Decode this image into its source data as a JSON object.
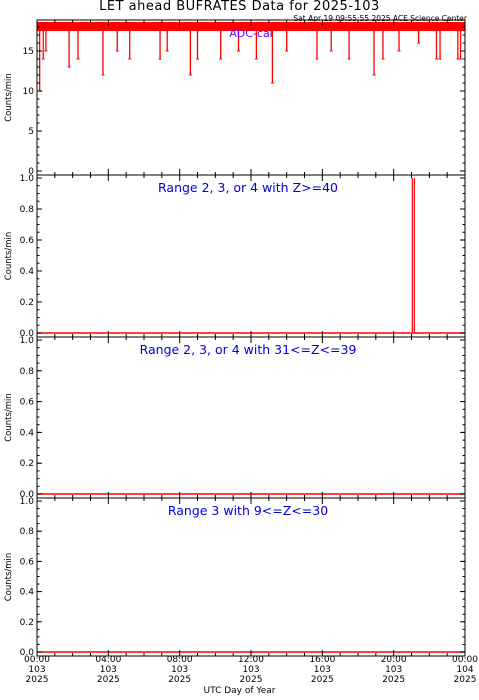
{
  "title": "LET ahead BUFRATES Data for 2025-103",
  "timestamp": "Sat Apr 19 09:55:55 2025 ACE Science Center",
  "xlabel": "UTC Day of Year",
  "colors": {
    "data": "#ff0000",
    "label": "#0000dd",
    "adc_label": "#6a00ff",
    "axes": "#000000"
  },
  "x_ticks": [
    {
      "time": "00:00",
      "doy": "103",
      "year": "2025"
    },
    {
      "time": "04:00",
      "doy": "103",
      "year": "2025"
    },
    {
      "time": "08:00",
      "doy": "103",
      "year": "2025"
    },
    {
      "time": "12:00",
      "doy": "103",
      "year": "2025"
    },
    {
      "time": "16:00",
      "doy": "103",
      "year": "2025"
    },
    {
      "time": "20:00",
      "doy": "103",
      "year": "2025"
    },
    {
      "time": "00:00",
      "doy": "104",
      "year": "2025"
    }
  ],
  "chart_data": [
    {
      "type": "line",
      "label": "ADC-cal",
      "ylabel": "Counts/min",
      "ylim": [
        0,
        18.5
      ],
      "xlim_hours": [
        0,
        24
      ],
      "yticks": [
        "0",
        "5",
        "10",
        "15"
      ],
      "ytick_values": [
        0,
        5,
        10,
        15
      ],
      "baseline": 18,
      "dips": [
        {
          "x": 0.15,
          "y": 10
        },
        {
          "x": 0.35,
          "y": 14
        },
        {
          "x": 0.5,
          "y": 15
        },
        {
          "x": 1.8,
          "y": 13
        },
        {
          "x": 2.3,
          "y": 14
        },
        {
          "x": 3.7,
          "y": 12
        },
        {
          "x": 4.5,
          "y": 15
        },
        {
          "x": 5.2,
          "y": 14
        },
        {
          "x": 6.9,
          "y": 14
        },
        {
          "x": 7.3,
          "y": 15
        },
        {
          "x": 8.6,
          "y": 12
        },
        {
          "x": 9.0,
          "y": 14
        },
        {
          "x": 10.3,
          "y": 14
        },
        {
          "x": 11.3,
          "y": 15
        },
        {
          "x": 12.3,
          "y": 14
        },
        {
          "x": 13.2,
          "y": 11
        },
        {
          "x": 14.0,
          "y": 15
        },
        {
          "x": 15.7,
          "y": 14
        },
        {
          "x": 16.5,
          "y": 15
        },
        {
          "x": 17.5,
          "y": 14
        },
        {
          "x": 18.9,
          "y": 12
        },
        {
          "x": 19.4,
          "y": 14
        },
        {
          "x": 20.3,
          "y": 15
        },
        {
          "x": 21.4,
          "y": 16
        },
        {
          "x": 22.4,
          "y": 14
        },
        {
          "x": 22.6,
          "y": 14
        },
        {
          "x": 23.6,
          "y": 14
        },
        {
          "x": 23.75,
          "y": 14
        }
      ]
    },
    {
      "type": "line",
      "label": "Range 2, 3, or 4 with Z>=40",
      "ylabel": "Counts/min",
      "ylim": [
        0,
        1
      ],
      "xlim_hours": [
        0,
        24
      ],
      "yticks": [
        "0.0",
        "0.2",
        "0.4",
        "0.6",
        "0.8",
        "1.0"
      ],
      "ytick_values": [
        0,
        0.2,
        0.4,
        0.6,
        0.8,
        1.0
      ],
      "baseline": 0,
      "spikes": [
        {
          "x": 21.1,
          "y": 1.0
        }
      ]
    },
    {
      "type": "line",
      "label": "Range 2, 3, or 4 with 31<=Z<=39",
      "ylabel": "Counts/min",
      "ylim": [
        0,
        1
      ],
      "xlim_hours": [
        0,
        24
      ],
      "yticks": [
        "0.0",
        "0.2",
        "0.4",
        "0.6",
        "0.8",
        "1.0"
      ],
      "ytick_values": [
        0,
        0.2,
        0.4,
        0.6,
        0.8,
        1.0
      ],
      "baseline": 0,
      "spikes": []
    },
    {
      "type": "line",
      "label": "Range 3 with 9<=Z<=30",
      "ylabel": "Counts/min",
      "ylim": [
        0,
        1
      ],
      "xlim_hours": [
        0,
        24
      ],
      "yticks": [
        "0.0",
        "0.2",
        "0.4",
        "0.6",
        "0.8",
        "1.0"
      ],
      "ytick_values": [
        0,
        0.2,
        0.4,
        0.6,
        0.8,
        1.0
      ],
      "baseline": 0,
      "spikes": []
    }
  ]
}
